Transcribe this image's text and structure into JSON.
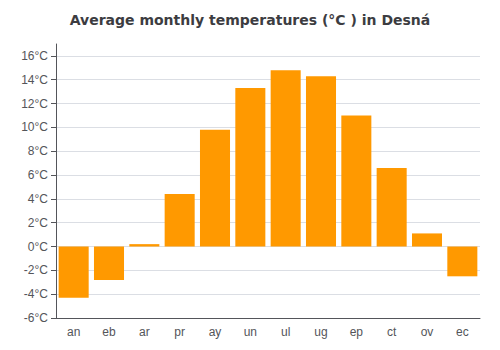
{
  "chart_data": {
    "type": "bar",
    "title": "Average monthly temperatures (°C ) in Desná",
    "categories": [
      "an",
      "eb",
      "ar",
      "pr",
      "ay",
      "un",
      "ul",
      "ug",
      "ep",
      "ct",
      "ov",
      "ec"
    ],
    "values": [
      -4.3,
      -2.8,
      0.2,
      4.4,
      9.8,
      13.3,
      14.8,
      14.3,
      11.0,
      6.6,
      1.1,
      -2.5
    ],
    "color": "#FF9900",
    "ylim": [
      -6,
      17
    ],
    "yticks": [
      {
        "value": -6,
        "label": "-6°C"
      },
      {
        "value": -4,
        "label": "-4°C"
      },
      {
        "value": -2,
        "label": "-2°C"
      },
      {
        "value": 0,
        "label": "0°C"
      },
      {
        "value": 2,
        "label": "2°C"
      },
      {
        "value": 4,
        "label": "4°C"
      },
      {
        "value": 6,
        "label": "6°C"
      },
      {
        "value": 8,
        "label": "8°C"
      },
      {
        "value": 10,
        "label": "10°C"
      },
      {
        "value": 12,
        "label": "12°C"
      },
      {
        "value": 14,
        "label": "14°C"
      },
      {
        "value": 16,
        "label": "16°C"
      }
    ],
    "grid": true
  }
}
